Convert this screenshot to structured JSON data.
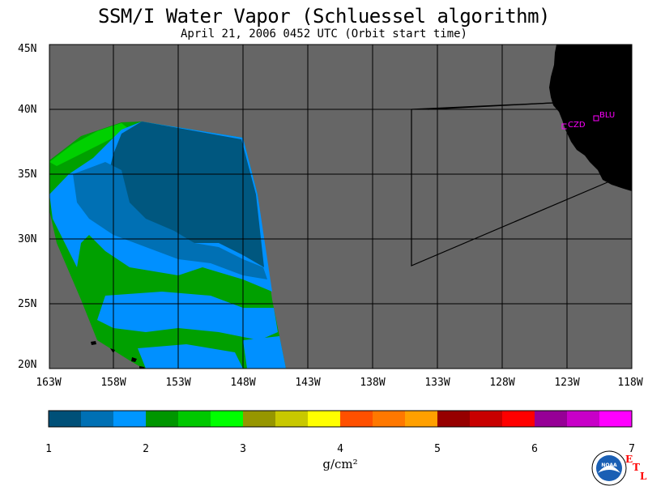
{
  "title": "SSM/I Water Vapor (Schluessel algorithm)",
  "subtitle": "April 21, 2006  0452 UTC  (Orbit start time)",
  "map": {
    "lon_labels": [
      "163W",
      "158W",
      "153W",
      "148W",
      "143W",
      "138W",
      "133W",
      "128W",
      "123W",
      "118W"
    ],
    "lat_labels": [
      "45N",
      "40N",
      "35N",
      "30N",
      "25N",
      "20N"
    ],
    "stations": [
      {
        "id": "CZD",
        "label": "CZD"
      },
      {
        "id": "BLU",
        "label": "BLU"
      }
    ],
    "colors": {
      "nodata": "#666666",
      "land": "#000000",
      "grid": "#000000",
      "station": "#ff00ff"
    }
  },
  "colorbar": {
    "colors": [
      "#005078",
      "#0070b4",
      "#0096ff",
      "#009600",
      "#00c800",
      "#00ff00",
      "#969600",
      "#c8c800",
      "#ffff00",
      "#ff5000",
      "#ff7800",
      "#ffa000",
      "#960000",
      "#c80000",
      "#ff0000",
      "#960096",
      "#c800c8",
      "#ff00ff"
    ],
    "tick_labels": [
      "1",
      "2",
      "3",
      "4",
      "5",
      "6",
      "7"
    ],
    "units": "g/cm²"
  },
  "logos": {
    "noaa_text": "NOAA",
    "etl_letters": [
      "E",
      "T",
      "L"
    ]
  }
}
